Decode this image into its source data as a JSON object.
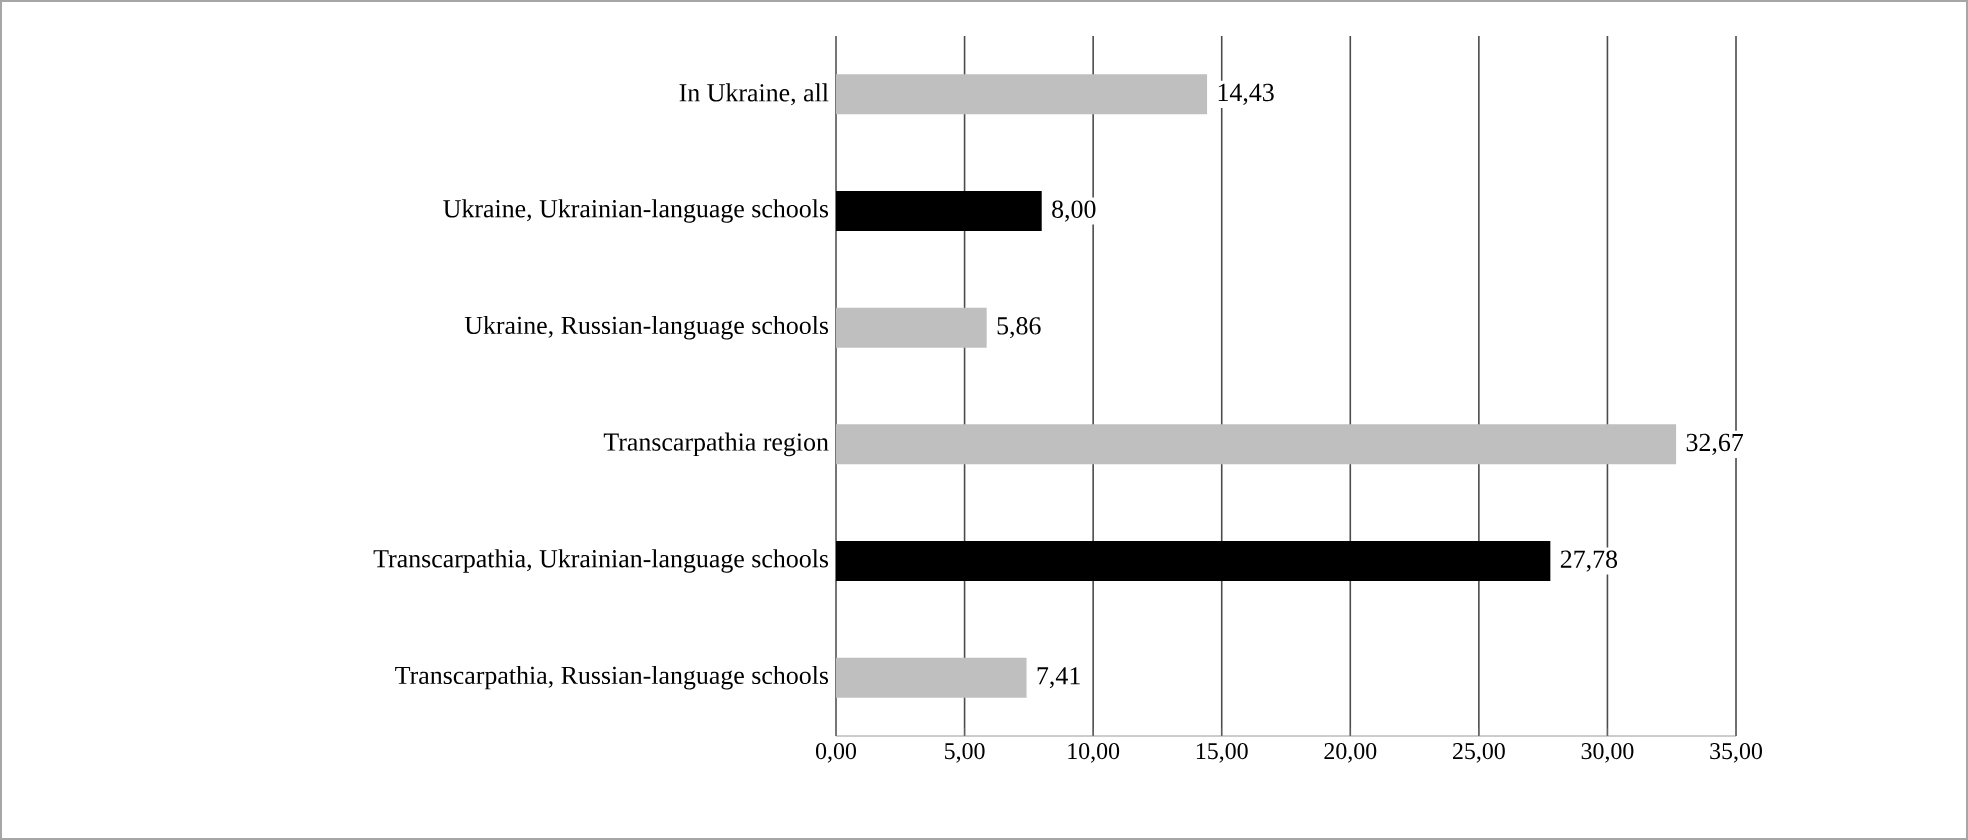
{
  "chart_data": {
    "type": "bar",
    "orientation": "horizontal",
    "categories": [
      "In Ukraine, all",
      "Ukraine, Ukrainian-language schools",
      "Ukraine, Russian-language schools",
      "Transcarpathia region",
      "Transcarpathia, Ukrainian-language schools",
      "Transcarpathia, Russian-language schools"
    ],
    "values": [
      14.43,
      8.0,
      5.86,
      32.67,
      27.78,
      7.41
    ],
    "value_labels": [
      "14,43",
      "8,00",
      "5,86",
      "32,67",
      "27,78",
      "7,41"
    ],
    "colors": [
      "#bfbfbf",
      "#000000",
      "#bfbfbf",
      "#bfbfbf",
      "#000000",
      "#bfbfbf"
    ],
    "xlim": [
      0,
      35
    ],
    "xticks": [
      {
        "value": 0,
        "label": "0,00"
      },
      {
        "value": 5,
        "label": "5,00"
      },
      {
        "value": 10,
        "label": "10,00"
      },
      {
        "value": 15,
        "label": "15,00"
      },
      {
        "value": 20,
        "label": "20,00"
      },
      {
        "value": 25,
        "label": "25,00"
      },
      {
        "value": 30,
        "label": "30,00"
      },
      {
        "value": 35,
        "label": "35,00"
      }
    ],
    "grid": "x"
  }
}
